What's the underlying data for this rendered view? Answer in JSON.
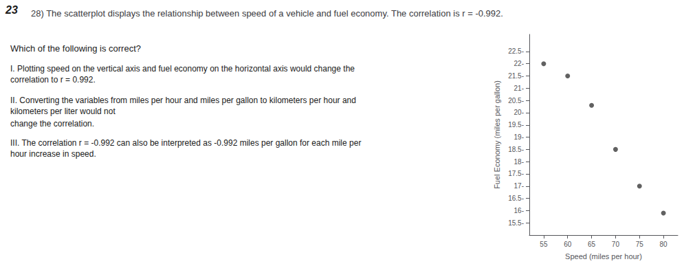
{
  "chart_data": {
    "type": "scatter",
    "title": "28) The scatterplot displays the relationship between speed of a vehicle and fuel economy. The correlation is r = -0.992.",
    "annotations": [
      "23",
      "Which of the following is correct?",
      "I. Plotting speed on the vertical axis and fuel economy on the horizontal axis would change the correlation to r = 0.992.",
      "II. Converting the variables from miles per hour and miles per gallon to kilometers per hour and kilometers per liter would not",
      "change the correlation.",
      "III. The correlation r = -0.992 can also be interpreted as -0.992 miles per gallon for each mile per hour increase in speed."
    ],
    "x": [
      55,
      60,
      65,
      70,
      75,
      80
    ],
    "values": [
      22.0,
      21.5,
      20.3,
      18.5,
      17.0,
      15.9
    ],
    "xlabel": "Speed (miles per hour)",
    "ylabel": "Fuel Economy (miles per gallon)",
    "xlim": [
      52,
      83
    ],
    "ylim": [
      15.0,
      23.2
    ],
    "xticks": [
      55,
      60,
      65,
      70,
      75,
      80
    ],
    "yticks": [
      {
        "value": 15.5,
        "label": "15.5-"
      },
      {
        "value": 16.0,
        "label": "16-"
      },
      {
        "value": 16.5,
        "label": "16.5-"
      },
      {
        "value": 17.0,
        "label": "17-"
      },
      {
        "value": 17.5,
        "label": "17.5-"
      },
      {
        "value": 18.0,
        "label": "18-"
      },
      {
        "value": 18.5,
        "label": "18.5-"
      },
      {
        "value": 19.0,
        "label": "19-"
      },
      {
        "value": 19.5,
        "label": "19.5-"
      },
      {
        "value": 20.0,
        "label": "20-"
      },
      {
        "value": 20.5,
        "label": "20.5-"
      },
      {
        "value": 21.0,
        "label": "21-"
      },
      {
        "value": 21.5,
        "label": "21.5-"
      },
      {
        "value": 22.0,
        "label": "22-"
      },
      {
        "value": 22.5,
        "label": "22.5-"
      }
    ],
    "color": "#3a3a3a",
    "grid": false
  }
}
